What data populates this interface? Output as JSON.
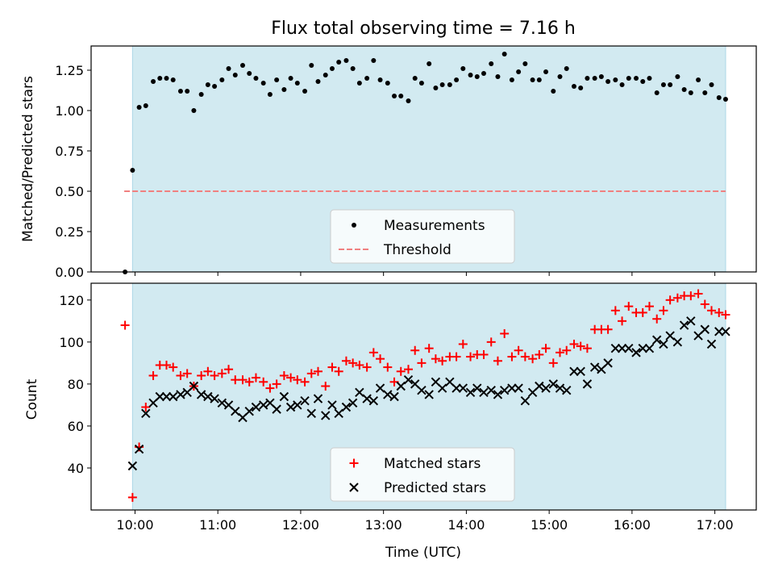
{
  "chart_data": {
    "title": "Flux total observing time = 7.16 h",
    "xlabel": "Time (UTC)",
    "x_unit": "hours UTC",
    "xlim": [
      9.47,
      17.5
    ],
    "xticks": [
      10,
      11,
      12,
      13,
      14,
      15,
      16,
      17
    ],
    "xtick_labels": [
      "10:00",
      "11:00",
      "12:00",
      "13:00",
      "14:00",
      "15:00",
      "16:00",
      "17:00"
    ],
    "observing_window": [
      9.97,
      17.13
    ],
    "colors": {
      "window": "#add8e6",
      "matched": "#ff0000",
      "predicted": "#000000",
      "threshold": "#f08080",
      "measurement": "#000000"
    },
    "panels": [
      {
        "type": "scatter",
        "ylabel": "Matched/Predicted stars",
        "ylim": [
          0,
          1.4
        ],
        "yticks": [
          0,
          0.25,
          0.5,
          0.75,
          1.0,
          1.25
        ],
        "ytick_labels": [
          "0.00",
          "0.25",
          "0.50",
          "0.75",
          "1.00",
          "1.25"
        ],
        "legend": {
          "placement": "bottom-center",
          "entries": [
            "Measurements",
            "Threshold"
          ]
        },
        "threshold": {
          "name": "Threshold",
          "value": 0.5,
          "x_range": [
            9.87,
            17.13
          ]
        },
        "series": [
          {
            "name": "Measurements",
            "x": [
              9.88,
              9.97,
              10.05,
              10.13,
              10.22,
              10.3,
              10.38,
              10.46,
              10.55,
              10.63,
              10.71,
              10.8,
              10.88,
              10.96,
              11.05,
              11.13,
              11.21,
              11.3,
              11.38,
              11.46,
              11.55,
              11.63,
              11.71,
              11.8,
              11.88,
              11.96,
              12.05,
              12.13,
              12.21,
              12.3,
              12.38,
              12.46,
              12.55,
              12.63,
              12.71,
              12.8,
              12.88,
              12.96,
              13.05,
              13.13,
              13.21,
              13.3,
              13.38,
              13.46,
              13.55,
              13.63,
              13.71,
              13.8,
              13.88,
              13.96,
              14.05,
              14.13,
              14.21,
              14.3,
              14.38,
              14.46,
              14.55,
              14.63,
              14.71,
              14.8,
              14.88,
              14.96,
              15.05,
              15.13,
              15.21,
              15.3,
              15.38,
              15.46,
              15.55,
              15.63,
              15.71,
              15.8,
              15.88,
              15.96,
              16.05,
              16.13,
              16.21,
              16.3,
              16.38,
              16.46,
              16.55,
              16.63,
              16.71,
              16.8,
              16.88,
              16.96,
              17.05,
              17.13
            ],
            "y": [
              0.0,
              0.63,
              1.02,
              1.03,
              1.18,
              1.2,
              1.2,
              1.19,
              1.12,
              1.12,
              1.0,
              1.1,
              1.16,
              1.15,
              1.19,
              1.26,
              1.22,
              1.28,
              1.23,
              1.2,
              1.17,
              1.1,
              1.19,
              1.13,
              1.2,
              1.17,
              1.12,
              1.28,
              1.18,
              1.22,
              1.26,
              1.3,
              1.31,
              1.26,
              1.17,
              1.2,
              1.31,
              1.19,
              1.17,
              1.09,
              1.09,
              1.06,
              1.2,
              1.17,
              1.29,
              1.14,
              1.16,
              1.16,
              1.19,
              1.26,
              1.22,
              1.21,
              1.23,
              1.29,
              1.21,
              1.35,
              1.19,
              1.24,
              1.29,
              1.19,
              1.19,
              1.24,
              1.12,
              1.21,
              1.26,
              1.15,
              1.14,
              1.2,
              1.2,
              1.21,
              1.18,
              1.19,
              1.16,
              1.2,
              1.2,
              1.18,
              1.2,
              1.11,
              1.16,
              1.16,
              1.21,
              1.13,
              1.11,
              1.19,
              1.11,
              1.16,
              1.08,
              1.07
            ]
          }
        ]
      },
      {
        "type": "scatter",
        "ylabel": "Count",
        "ylim": [
          20,
          128
        ],
        "yticks": [
          40,
          60,
          80,
          100,
          120
        ],
        "ytick_labels": [
          "40",
          "60",
          "80",
          "100",
          "120"
        ],
        "legend": {
          "placement": "bottom-center",
          "entries": [
            "Matched stars",
            "Predicted stars"
          ]
        },
        "series": [
          {
            "name": "Matched stars",
            "marker": "plus",
            "x": [
              9.88,
              9.97,
              10.05,
              10.13,
              10.22,
              10.3,
              10.38,
              10.46,
              10.55,
              10.63,
              10.71,
              10.8,
              10.88,
              10.96,
              11.05,
              11.13,
              11.21,
              11.3,
              11.38,
              11.46,
              11.55,
              11.63,
              11.71,
              11.8,
              11.88,
              11.96,
              12.05,
              12.13,
              12.21,
              12.3,
              12.38,
              12.46,
              12.55,
              12.63,
              12.71,
              12.8,
              12.88,
              12.96,
              13.05,
              13.13,
              13.21,
              13.3,
              13.38,
              13.46,
              13.55,
              13.63,
              13.71,
              13.8,
              13.88,
              13.96,
              14.05,
              14.13,
              14.21,
              14.3,
              14.38,
              14.46,
              14.55,
              14.63,
              14.71,
              14.8,
              14.88,
              14.96,
              15.05,
              15.13,
              15.21,
              15.3,
              15.38,
              15.46,
              15.55,
              15.63,
              15.71,
              15.8,
              15.88,
              15.96,
              16.05,
              16.13,
              16.21,
              16.3,
              16.38,
              16.46,
              16.55,
              16.63,
              16.71,
              16.8,
              16.88,
              16.96,
              17.05,
              17.13
            ],
            "y": [
              108,
              26,
              50,
              69,
              84,
              89,
              89,
              88,
              84,
              85,
              79,
              84,
              86,
              84,
              85,
              87,
              82,
              82,
              81,
              83,
              81,
              78,
              80,
              84,
              83,
              82,
              81,
              85,
              86,
              79,
              88,
              86,
              91,
              90,
              89,
              88,
              95,
              92,
              88,
              81,
              86,
              87,
              96,
              90,
              97,
              92,
              91,
              93,
              93,
              99,
              93,
              94,
              94,
              100,
              91,
              104,
              93,
              96,
              93,
              92,
              94,
              97,
              90,
              95,
              96,
              99,
              98,
              97,
              106,
              106,
              106,
              115,
              110,
              117,
              114,
              114,
              117,
              111,
              115,
              120,
              121,
              122,
              122,
              123,
              118,
              115,
              114,
              113
            ]
          },
          {
            "name": "Predicted stars",
            "marker": "x",
            "x": [
              9.97,
              10.05,
              10.13,
              10.22,
              10.3,
              10.38,
              10.46,
              10.55,
              10.63,
              10.71,
              10.8,
              10.88,
              10.96,
              11.05,
              11.13,
              11.21,
              11.3,
              11.38,
              11.46,
              11.55,
              11.63,
              11.71,
              11.8,
              11.88,
              11.96,
              12.05,
              12.13,
              12.21,
              12.3,
              12.38,
              12.46,
              12.55,
              12.63,
              12.71,
              12.8,
              12.88,
              12.96,
              13.05,
              13.13,
              13.21,
              13.3,
              13.38,
              13.46,
              13.55,
              13.63,
              13.71,
              13.8,
              13.88,
              13.96,
              14.05,
              14.13,
              14.21,
              14.3,
              14.38,
              14.46,
              14.55,
              14.63,
              14.71,
              14.8,
              14.88,
              14.96,
              15.05,
              15.13,
              15.21,
              15.3,
              15.38,
              15.46,
              15.55,
              15.63,
              15.71,
              15.8,
              15.88,
              15.96,
              16.05,
              16.13,
              16.21,
              16.3,
              16.38,
              16.46,
              16.55,
              16.63,
              16.71,
              16.8,
              16.88,
              16.96,
              17.05,
              17.13
            ],
            "y": [
              41,
              49,
              66,
              71,
              74,
              74,
              74,
              75,
              76,
              79,
              75,
              74,
              73,
              71,
              70,
              67,
              64,
              67,
              69,
              70,
              71,
              68,
              74,
              69,
              70,
              72,
              66,
              73,
              65,
              70,
              66,
              69,
              71,
              76,
              73,
              72,
              78,
              75,
              74,
              79,
              82,
              80,
              77,
              75,
              81,
              78,
              81,
              78,
              78,
              76,
              78,
              76,
              77,
              75,
              77,
              78,
              78,
              72,
              76,
              79,
              78,
              80,
              78,
              77,
              86,
              86,
              80,
              88,
              87,
              90,
              97,
              97,
              97,
              95,
              97,
              97,
              101,
              99,
              103,
              100,
              108,
              110,
              103,
              106,
              99,
              105,
              105
            ]
          }
        ]
      }
    ]
  }
}
